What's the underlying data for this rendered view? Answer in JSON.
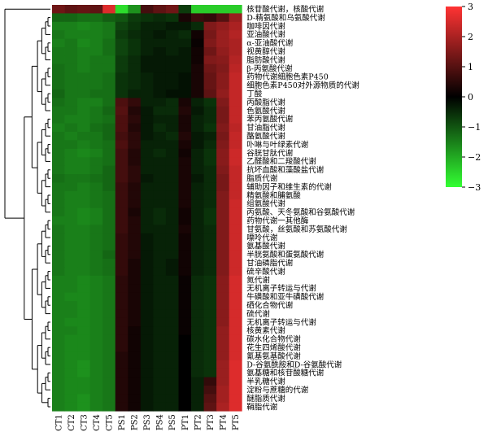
{
  "chart_data": {
    "type": "heatmap",
    "columns": [
      "CT1",
      "CT2",
      "CT3",
      "CT4",
      "CT5",
      "PS1",
      "PS2",
      "PS3",
      "PS4",
      "PS5",
      "PT1",
      "PT2",
      "PT3",
      "PT4",
      "PT5"
    ],
    "rows": [
      "核苷酸代谢，核酸代谢",
      "D-精氨酸和乌氨酸代谢",
      "咖啡因代谢",
      "亚油酸代谢",
      "α-亚油酸代谢",
      "视黄醇代谢",
      "脂肪酸代谢",
      "β-丙氨酸代谢",
      "药物代谢细胞色素P450",
      "细胞色素P450对外源物质的代谢",
      "丁酸",
      "丙酸脂代谢",
      "色氨酸代谢",
      "苯丙氨酸代谢",
      "甘油脂代谢",
      "酪氨酸代谢",
      "卟啉与叶绿素代谢",
      "谷胱甘肽代谢",
      "乙醛酸和二羧酸代谢",
      "抗坏血酸和藻酸盐代谢",
      "脂质代谢",
      "辅助因子和维生素的代谢",
      "精氨酸和脯氨酸",
      "组氨酸代谢",
      "丙氨酸、天冬氨酸和谷氨酸代谢",
      "药物代谢一其他酶",
      "甘氨酸，丝氨酸和苏氨酸代谢",
      "嘌呤代谢",
      "氨基酸代谢",
      "半胱氨酸和蛋氨酸代谢",
      "甘油磷脂代谢",
      "硫辛酸代谢",
      "氮代谢",
      "无机离子转运与代谢",
      "牛磺酸和亚牛磺酸代谢",
      "硒化合物代谢",
      "硫代谢",
      "无机离子转运与代谢",
      "核黄素代谢",
      "碳水化合物代谢",
      "花生四烯酸代谢",
      "氰基氨基酸代谢",
      "D-谷氨酰胺和D-谷氨酸代谢",
      "氨基糖和核苷酸糖代谢",
      "半乳糖代谢",
      "淀粉与蔗糖的代谢",
      "醚脂质代谢",
      "鞘脂代谢"
    ],
    "values": [
      [
        1.3,
        1.1,
        1.2,
        1.1,
        2.6,
        -2.6,
        -1.7,
        0.8,
        1.1,
        1.3,
        -0.7,
        -2.4,
        -2.4,
        -2.4,
        -2.4
      ],
      [
        -1.2,
        -1.2,
        -1.3,
        -1.3,
        -1.1,
        -1.0,
        -0.7,
        -0.6,
        -0.5,
        -0.6,
        0.3,
        0.7,
        0.6,
        1.0,
        1.8
      ],
      [
        -1.5,
        -1.5,
        -1.6,
        -1.5,
        -1.4,
        -0.8,
        -0.6,
        -0.4,
        -0.4,
        -0.3,
        -0.3,
        -0.5,
        1.5,
        1.7,
        2.0
      ],
      [
        -1.4,
        -1.5,
        -1.5,
        -1.5,
        -1.4,
        -0.7,
        -0.5,
        -0.4,
        -0.3,
        -0.4,
        -0.5,
        0.2,
        1.4,
        1.8,
        2.1
      ],
      [
        -1.5,
        -1.4,
        -1.6,
        -1.5,
        -1.3,
        -0.8,
        -0.6,
        -0.4,
        -0.4,
        -0.4,
        -0.4,
        0.1,
        1.5,
        1.8,
        2.0
      ],
      [
        -1.4,
        -1.4,
        -1.5,
        -1.5,
        -1.3,
        -0.8,
        -0.6,
        -0.4,
        -0.3,
        -0.4,
        -0.3,
        0.2,
        1.3,
        1.7,
        2.0
      ],
      [
        -1.4,
        -1.4,
        -1.5,
        -1.4,
        -1.4,
        -0.7,
        -0.5,
        -0.3,
        -0.3,
        -0.3,
        -0.3,
        0.2,
        1.5,
        1.6,
        2.1
      ],
      [
        -1.3,
        -1.4,
        -1.5,
        -1.4,
        -1.4,
        -0.7,
        -0.5,
        -0.3,
        -0.3,
        -0.3,
        -0.3,
        0.3,
        1.3,
        1.5,
        2.2
      ],
      [
        -1.3,
        -1.4,
        -1.4,
        -1.4,
        -1.3,
        -0.6,
        -0.5,
        -0.4,
        -0.3,
        -0.3,
        -0.2,
        0.3,
        1.2,
        1.6,
        2.3
      ],
      [
        -1.3,
        -1.4,
        -1.4,
        -1.4,
        -1.3,
        -0.6,
        -0.5,
        -0.4,
        -0.3,
        -0.3,
        -0.2,
        0.3,
        1.2,
        1.6,
        2.3
      ],
      [
        -1.2,
        -1.4,
        -1.4,
        -1.3,
        -1.3,
        -0.6,
        -0.4,
        -0.4,
        -0.3,
        -0.2,
        -0.2,
        0.3,
        1.1,
        1.7,
        2.3
      ],
      [
        -1.3,
        -1.4,
        -1.5,
        -1.5,
        -1.3,
        0.9,
        0.6,
        -0.4,
        -0.4,
        -0.5,
        0.3,
        -0.4,
        -0.6,
        1.5,
        2.3
      ],
      [
        -1.4,
        -1.4,
        -1.5,
        -1.4,
        -1.2,
        1.0,
        0.4,
        -0.3,
        -0.5,
        -0.5,
        0.4,
        -0.3,
        -0.5,
        1.4,
        2.3
      ],
      [
        -1.4,
        -1.5,
        -1.5,
        -1.4,
        -1.3,
        0.9,
        0.5,
        -0.3,
        -0.4,
        -0.4,
        0.3,
        -0.4,
        -0.5,
        1.4,
        2.3
      ],
      [
        -1.5,
        -1.4,
        -1.5,
        -1.3,
        -1.2,
        0.9,
        0.4,
        -0.3,
        -0.5,
        -0.4,
        0.3,
        -0.4,
        -0.6,
        1.5,
        2.2
      ],
      [
        -1.4,
        -1.5,
        -1.4,
        -1.4,
        -1.2,
        0.8,
        0.5,
        -0.3,
        -0.4,
        -0.5,
        0.4,
        -0.3,
        -0.4,
        1.4,
        2.3
      ],
      [
        -1.4,
        -1.4,
        -1.5,
        -1.4,
        -1.3,
        0.9,
        0.5,
        -0.4,
        -0.4,
        -0.4,
        0.3,
        -0.3,
        -0.5,
        1.5,
        2.3
      ],
      [
        -1.4,
        -1.5,
        -1.6,
        -1.5,
        -1.3,
        0.8,
        0.4,
        -0.4,
        -0.5,
        -0.4,
        0.2,
        -0.4,
        -0.6,
        1.6,
        2.4
      ],
      [
        -1.4,
        -1.5,
        -1.5,
        -1.4,
        -1.3,
        0.8,
        0.4,
        -0.4,
        -0.4,
        -0.4,
        0.3,
        -0.4,
        -0.6,
        1.6,
        2.4
      ],
      [
        -1.4,
        -1.5,
        -1.5,
        -1.4,
        -1.2,
        0.8,
        0.5,
        -0.4,
        -0.4,
        -0.4,
        0.3,
        -0.4,
        -0.5,
        1.5,
        2.3
      ],
      [
        -1.3,
        -1.4,
        -1.4,
        -1.3,
        -1.2,
        0.8,
        0.5,
        -0.3,
        -0.4,
        -0.4,
        0.3,
        -0.3,
        -0.5,
        1.4,
        2.3
      ],
      [
        -1.4,
        -1.4,
        -1.5,
        -1.4,
        -1.2,
        0.7,
        0.4,
        -0.4,
        -0.4,
        -0.4,
        0.3,
        -0.4,
        -0.5,
        1.4,
        2.3
      ],
      [
        -1.4,
        -1.5,
        -1.5,
        -1.4,
        -1.3,
        0.7,
        0.4,
        -0.4,
        -0.4,
        -0.4,
        0.3,
        -0.4,
        -0.5,
        1.5,
        2.3
      ],
      [
        -1.4,
        -1.5,
        -1.5,
        -1.4,
        -1.3,
        0.7,
        0.4,
        -0.4,
        -0.4,
        -0.4,
        0.3,
        -0.4,
        -0.5,
        1.5,
        2.4
      ],
      [
        -1.4,
        -1.5,
        -1.6,
        -1.5,
        -1.3,
        0.7,
        0.3,
        -0.4,
        -0.5,
        -0.4,
        0.2,
        -0.4,
        -0.6,
        1.5,
        2.4
      ],
      [
        -1.5,
        -1.5,
        -1.6,
        -1.5,
        -1.3,
        0.7,
        0.4,
        -0.4,
        -0.5,
        -0.4,
        0.2,
        -0.4,
        -0.6,
        1.5,
        2.4
      ],
      [
        -1.4,
        -1.5,
        -1.5,
        -1.4,
        -1.3,
        0.7,
        0.4,
        -0.4,
        -0.4,
        -0.4,
        0.3,
        -0.4,
        -0.5,
        1.5,
        2.4
      ],
      [
        -1.4,
        -1.5,
        -1.5,
        -1.4,
        -1.3,
        0.6,
        0.4,
        -0.3,
        -0.4,
        -0.4,
        0.2,
        -0.4,
        -0.5,
        1.5,
        2.4
      ],
      [
        -1.4,
        -1.5,
        -1.5,
        -1.4,
        -1.3,
        0.6,
        0.4,
        -0.3,
        -0.4,
        -0.4,
        0.2,
        -0.4,
        -0.5,
        1.5,
        2.4
      ],
      [
        -1.4,
        -1.5,
        -1.5,
        -1.4,
        -1.2,
        0.6,
        0.4,
        -0.3,
        -0.4,
        -0.4,
        0.2,
        -0.4,
        -0.5,
        1.5,
        2.4
      ],
      [
        -1.4,
        -1.5,
        -1.5,
        -1.4,
        -1.3,
        0.6,
        0.3,
        -0.3,
        -0.4,
        -0.3,
        0.2,
        -0.4,
        -0.5,
        1.5,
        2.4
      ],
      [
        -1.4,
        -1.5,
        -1.5,
        -1.4,
        -1.3,
        0.6,
        0.3,
        -0.3,
        -0.4,
        -0.3,
        0.2,
        -0.4,
        -0.5,
        1.5,
        2.4
      ],
      [
        -1.5,
        -1.5,
        -1.6,
        -1.5,
        -1.4,
        0.5,
        0.3,
        -0.3,
        -0.4,
        -0.4,
        0.1,
        -0.5,
        -0.6,
        1.6,
        2.5
      ],
      [
        -1.5,
        -1.5,
        -1.6,
        -1.5,
        -1.4,
        0.5,
        0.3,
        -0.3,
        -0.4,
        -0.4,
        0.1,
        -0.5,
        -0.6,
        1.6,
        2.5
      ],
      [
        -1.5,
        -1.6,
        -1.6,
        -1.5,
        -1.4,
        0.5,
        0.3,
        -0.3,
        -0.4,
        -0.4,
        0.1,
        -0.5,
        -0.6,
        1.6,
        2.5
      ],
      [
        -1.5,
        -1.5,
        -1.6,
        -1.5,
        -1.4,
        0.5,
        0.3,
        -0.3,
        -0.4,
        -0.4,
        0.1,
        -0.5,
        -0.6,
        1.6,
        2.5
      ],
      [
        -1.5,
        -1.5,
        -1.6,
        -1.5,
        -1.4,
        0.5,
        0.3,
        -0.3,
        -0.4,
        -0.4,
        0.1,
        -0.5,
        -0.6,
        1.6,
        2.5
      ],
      [
        -1.5,
        -1.6,
        -1.6,
        -1.5,
        -1.4,
        0.5,
        0.3,
        -0.3,
        -0.4,
        -0.4,
        0.1,
        -0.5,
        -0.6,
        1.6,
        2.5
      ],
      [
        -1.5,
        -1.5,
        -1.6,
        -1.5,
        -1.4,
        0.5,
        0.2,
        -0.3,
        -0.4,
        -0.4,
        0.1,
        -0.5,
        -0.6,
        1.7,
        2.5
      ],
      [
        -1.5,
        -1.6,
        -1.6,
        -1.5,
        -1.4,
        0.5,
        0.2,
        -0.3,
        -0.4,
        -0.4,
        0.0,
        -0.5,
        -0.6,
        1.7,
        2.5
      ],
      [
        -1.5,
        -1.6,
        -1.6,
        -1.5,
        -1.4,
        0.5,
        0.2,
        -0.3,
        -0.4,
        -0.4,
        0.0,
        -0.5,
        -0.6,
        1.7,
        2.5
      ],
      [
        -1.5,
        -1.6,
        -1.6,
        -1.5,
        -1.4,
        0.4,
        0.2,
        -0.3,
        -0.4,
        -0.4,
        0.0,
        -0.5,
        -0.6,
        1.7,
        2.5
      ],
      [
        -1.5,
        -1.6,
        -1.7,
        -1.5,
        -1.4,
        0.4,
        0.2,
        -0.3,
        -0.4,
        -0.4,
        0.0,
        -0.5,
        -0.6,
        1.8,
        2.6
      ],
      [
        -1.5,
        -1.6,
        -1.7,
        -1.5,
        -1.4,
        0.4,
        0.2,
        -0.3,
        -0.4,
        -0.4,
        0.0,
        -0.5,
        -0.6,
        1.8,
        2.6
      ],
      [
        -1.5,
        -1.6,
        -1.6,
        -1.5,
        -1.4,
        0.4,
        0.2,
        -0.3,
        -0.4,
        -0.4,
        0.0,
        -0.4,
        0.6,
        1.8,
        2.6
      ],
      [
        -1.5,
        -1.6,
        -1.6,
        -1.5,
        -1.4,
        0.4,
        0.2,
        -0.3,
        -0.4,
        -0.4,
        0.0,
        -0.4,
        0.8,
        1.9,
        2.6
      ],
      [
        -1.5,
        -1.6,
        -1.7,
        -1.5,
        -1.4,
        0.4,
        0.2,
        -0.3,
        -0.4,
        -0.4,
        0.0,
        -0.4,
        1.0,
        1.9,
        2.6
      ],
      [
        -1.5,
        -1.6,
        -1.7,
        -1.5,
        -1.4,
        0.4,
        0.2,
        -0.3,
        -0.4,
        -0.4,
        0.0,
        -0.4,
        1.1,
        2.0,
        2.6
      ]
    ],
    "color_scale": {
      "min": -3,
      "max": 3,
      "colors": [
        "#33ff33",
        "#000000",
        "#ff3333"
      ],
      "ticks": [
        "3",
        "2",
        "1",
        "0",
        "−1",
        "−2",
        "−3"
      ]
    },
    "dendrogram": "left"
  }
}
